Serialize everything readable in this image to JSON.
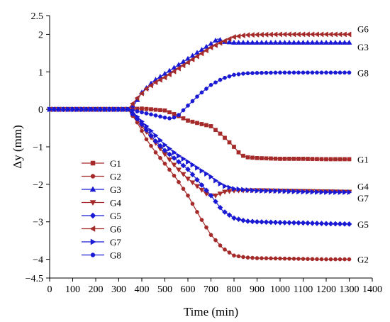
{
  "chart_data": {
    "type": "line",
    "xlabel": "Time (min)",
    "ylabel": "Δy (mm)",
    "xlim": [
      0,
      1400
    ],
    "ylim": [
      -4.5,
      2.5
    ],
    "x_ticks": [
      "0",
      "100",
      "200",
      "300",
      "400",
      "500",
      "600",
      "700",
      "800",
      "900",
      "1000",
      "1100",
      "1200",
      "1300",
      "1400"
    ],
    "y_ticks": [
      "2.5",
      "2",
      "1",
      "0",
      "−1",
      "−2",
      "−3",
      "−4",
      "−4.5"
    ],
    "legend_placement": "lower-left",
    "grid": false,
    "series": [
      {
        "name": "G1",
        "end_label": "G1",
        "color": "#a52a2a",
        "marker": "square",
        "points": [
          [
            0,
            0
          ],
          [
            340,
            0
          ],
          [
            400,
            0.02
          ],
          [
            500,
            -0.03
          ],
          [
            550,
            -0.15
          ],
          [
            600,
            -0.3
          ],
          [
            650,
            -0.38
          ],
          [
            700,
            -0.45
          ],
          [
            750,
            -0.7
          ],
          [
            800,
            -1.0
          ],
          [
            830,
            -1.22
          ],
          [
            860,
            -1.28
          ],
          [
            900,
            -1.3
          ],
          [
            1000,
            -1.32
          ],
          [
            1100,
            -1.32
          ],
          [
            1200,
            -1.33
          ],
          [
            1300,
            -1.33
          ]
        ]
      },
      {
        "name": "G2",
        "end_label": "G2",
        "color": "#a52a2a",
        "marker": "circle",
        "points": [
          [
            0,
            0
          ],
          [
            340,
            0
          ],
          [
            380,
            -0.35
          ],
          [
            420,
            -0.8
          ],
          [
            460,
            -1.15
          ],
          [
            500,
            -1.45
          ],
          [
            550,
            -1.85
          ],
          [
            600,
            -2.3
          ],
          [
            650,
            -2.85
          ],
          [
            700,
            -3.35
          ],
          [
            750,
            -3.7
          ],
          [
            800,
            -3.9
          ],
          [
            850,
            -3.95
          ],
          [
            900,
            -3.97
          ],
          [
            1000,
            -3.98
          ],
          [
            1100,
            -3.99
          ],
          [
            1200,
            -4.0
          ],
          [
            1300,
            -4.0
          ]
        ]
      },
      {
        "name": "G3",
        "end_label": "G3",
        "color": "#1a1ad4",
        "marker": "triangle-up",
        "points": [
          [
            0,
            0
          ],
          [
            340,
            0
          ],
          [
            370,
            0.15
          ],
          [
            400,
            0.45
          ],
          [
            450,
            0.75
          ],
          [
            500,
            0.95
          ],
          [
            550,
            1.15
          ],
          [
            600,
            1.35
          ],
          [
            650,
            1.55
          ],
          [
            700,
            1.75
          ],
          [
            730,
            1.88
          ],
          [
            760,
            1.8
          ],
          [
            800,
            1.78
          ],
          [
            900,
            1.78
          ],
          [
            1000,
            1.78
          ],
          [
            1100,
            1.78
          ],
          [
            1200,
            1.78
          ],
          [
            1300,
            1.78
          ]
        ]
      },
      {
        "name": "G4",
        "end_label": "G4",
        "color": "#a52a2a",
        "marker": "triangle-down",
        "points": [
          [
            0,
            0
          ],
          [
            340,
            0
          ],
          [
            380,
            -0.3
          ],
          [
            420,
            -0.6
          ],
          [
            460,
            -0.9
          ],
          [
            500,
            -1.2
          ],
          [
            550,
            -1.55
          ],
          [
            600,
            -1.85
          ],
          [
            650,
            -2.1
          ],
          [
            690,
            -2.3
          ],
          [
            720,
            -2.3
          ],
          [
            760,
            -2.2
          ],
          [
            800,
            -2.17
          ],
          [
            900,
            -2.16
          ],
          [
            1000,
            -2.17
          ],
          [
            1100,
            -2.18
          ],
          [
            1200,
            -2.19
          ],
          [
            1300,
            -2.2
          ]
        ]
      },
      {
        "name": "G5",
        "end_label": "G5",
        "color": "#1a1ad4",
        "marker": "diamond",
        "points": [
          [
            0,
            0
          ],
          [
            340,
            0
          ],
          [
            380,
            -0.25
          ],
          [
            420,
            -0.55
          ],
          [
            460,
            -0.85
          ],
          [
            500,
            -1.1
          ],
          [
            550,
            -1.35
          ],
          [
            600,
            -1.6
          ],
          [
            650,
            -1.95
          ],
          [
            700,
            -2.3
          ],
          [
            750,
            -2.7
          ],
          [
            800,
            -2.9
          ],
          [
            850,
            -2.98
          ],
          [
            900,
            -3.0
          ],
          [
            1000,
            -3.02
          ],
          [
            1100,
            -3.03
          ],
          [
            1200,
            -3.05
          ],
          [
            1300,
            -3.06
          ]
        ]
      },
      {
        "name": "G6",
        "end_label": "G6",
        "color": "#a52a2a",
        "marker": "triangle-left",
        "points": [
          [
            0,
            0
          ],
          [
            340,
            0
          ],
          [
            380,
            0.3
          ],
          [
            420,
            0.55
          ],
          [
            460,
            0.72
          ],
          [
            500,
            0.85
          ],
          [
            550,
            1.05
          ],
          [
            600,
            1.25
          ],
          [
            650,
            1.45
          ],
          [
            700,
            1.65
          ],
          [
            750,
            1.8
          ],
          [
            800,
            1.93
          ],
          [
            850,
            1.98
          ],
          [
            900,
            1.99
          ],
          [
            1000,
            2.0
          ],
          [
            1100,
            2.0
          ],
          [
            1200,
            2.0
          ],
          [
            1300,
            2.0
          ]
        ]
      },
      {
        "name": "G7",
        "end_label": "G7",
        "color": "#1a1ad4",
        "marker": "triangle-right",
        "points": [
          [
            0,
            0
          ],
          [
            340,
            0
          ],
          [
            380,
            -0.2
          ],
          [
            420,
            -0.45
          ],
          [
            460,
            -0.7
          ],
          [
            500,
            -0.95
          ],
          [
            550,
            -1.2
          ],
          [
            600,
            -1.4
          ],
          [
            650,
            -1.6
          ],
          [
            700,
            -1.8
          ],
          [
            730,
            -1.95
          ],
          [
            760,
            -2.05
          ],
          [
            800,
            -2.12
          ],
          [
            850,
            -2.15
          ],
          [
            900,
            -2.17
          ],
          [
            1000,
            -2.18
          ],
          [
            1100,
            -2.2
          ],
          [
            1200,
            -2.21
          ],
          [
            1300,
            -2.21
          ]
        ]
      },
      {
        "name": "G8",
        "end_label": "G8",
        "color": "#1a1ad4",
        "marker": "circle",
        "points": [
          [
            0,
            0
          ],
          [
            340,
            0
          ],
          [
            400,
            -0.08
          ],
          [
            450,
            -0.15
          ],
          [
            500,
            -0.22
          ],
          [
            530,
            -0.25
          ],
          [
            560,
            -0.15
          ],
          [
            600,
            0.1
          ],
          [
            650,
            0.4
          ],
          [
            700,
            0.65
          ],
          [
            750,
            0.82
          ],
          [
            800,
            0.92
          ],
          [
            850,
            0.96
          ],
          [
            900,
            0.97
          ],
          [
            1000,
            0.98
          ],
          [
            1100,
            0.98
          ],
          [
            1200,
            0.98
          ],
          [
            1300,
            0.98
          ]
        ]
      }
    ]
  }
}
